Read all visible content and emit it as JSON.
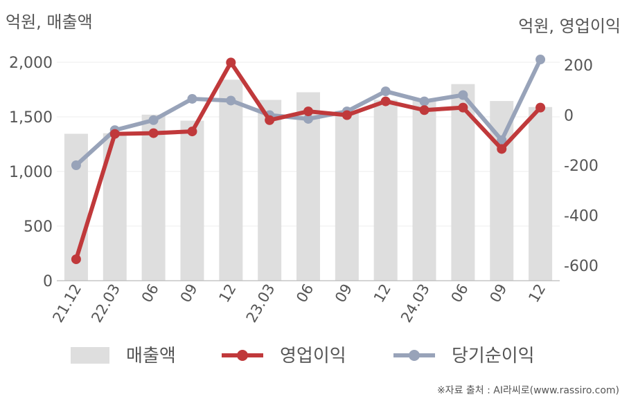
{
  "unit_left": "억원, 매출액",
  "unit_right": "억원, 영업이익",
  "source_note": "※자료 출처 : AI라씨로(www.rassiro.com)",
  "colors": {
    "revenue": "#dedede",
    "operating_profit": "#c0393b",
    "net_income": "#98a3b9",
    "axis": "#bbbbbb",
    "grid": "#ececec",
    "text": "#555555"
  },
  "chart_data": {
    "type": "bar",
    "categories": [
      "21.12",
      "22.03",
      "06",
      "09",
      "12",
      "23.03",
      "06",
      "09",
      "12",
      "24.03",
      "06",
      "09",
      "12"
    ],
    "series": [
      {
        "name": "매출액",
        "type": "bar",
        "axis": "left",
        "values": [
          1345,
          1350,
          1520,
          1465,
          1840,
          1655,
          1725,
          1555,
          1655,
          1655,
          1800,
          1645,
          1590
        ]
      },
      {
        "name": "영업이익",
        "type": "line",
        "axis": "right",
        "values": [
          -575,
          -75,
          -72,
          -65,
          210,
          -20,
          15,
          0,
          55,
          20,
          30,
          -135,
          30
        ]
      },
      {
        "name": "당기순이익",
        "type": "line",
        "axis": "right",
        "values": [
          -200,
          -60,
          -20,
          65,
          58,
          0,
          -15,
          15,
          95,
          55,
          80,
          -100,
          222
        ]
      }
    ],
    "y_left": {
      "min": 0,
      "max": 2000,
      "ticks": [
        0,
        500,
        1000,
        1500,
        2000
      ],
      "tick_labels": [
        "0",
        "500",
        "1,000",
        "1,500",
        "2,000"
      ]
    },
    "y_right": {
      "min": -700,
      "max": 200,
      "ticks": [
        -600,
        -400,
        -200,
        0,
        200
      ],
      "tick_labels": [
        "-600",
        "-400",
        "-200",
        "0",
        "200"
      ]
    },
    "grid": true,
    "legend_position": "bottom"
  }
}
